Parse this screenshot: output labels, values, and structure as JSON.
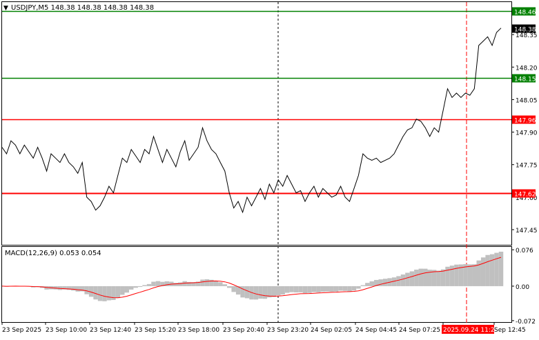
{
  "symbol_header": {
    "arrow": "▼",
    "text": "USDJPY,M5  148.38 148.38 148.38 148.38"
  },
  "macd_header": {
    "text": "MACD(12,26,9) 0.053 0.054"
  },
  "price_axis": {
    "ticks": [
      "148.35",
      "148.20",
      "148.05",
      "147.90",
      "147.75",
      "147.60",
      "147.45"
    ],
    "tick_values": [
      148.35,
      148.2,
      148.05,
      147.9,
      147.75,
      147.6,
      147.45
    ]
  },
  "macd_axis": {
    "ticks": [
      "0.076",
      "0.00",
      "-0.072"
    ],
    "tick_values": [
      0.076,
      0.0,
      -0.072
    ]
  },
  "time_axis": {
    "labels": [
      "23 Sep 2025",
      "23 Sep 10:00",
      "23 Sep 12:40",
      "23 Sep 15:20",
      "23 Sep 18:00",
      "23 Sep 20:40",
      "23 Sep 23:20",
      "24 Sep 02:05",
      "24 Sep 04:45",
      "24 Sep 07:25",
      "2025.09.24 11:25",
      "Sep 12:45"
    ],
    "highlight_label": "2025.09.24 11:25"
  },
  "levels": [
    {
      "name": "resistance-high",
      "label": "148.46",
      "value": 148.46,
      "color": "#008000"
    },
    {
      "name": "current-price",
      "label": "148.38",
      "value": 148.38,
      "color": "#000000"
    },
    {
      "name": "resistance-low",
      "label": "148.15",
      "value": 148.15,
      "color": "#008000"
    },
    {
      "name": "support-high",
      "label": "147.96",
      "value": 147.96,
      "color": "#ff0000"
    },
    {
      "name": "support-low",
      "label": "147.62",
      "value": 147.62,
      "color": "#ff0000"
    }
  ],
  "colors": {
    "price_line": "#000000",
    "macd_histogram": "#c0c0c0",
    "macd_signal": "#ff0000",
    "green_level": "#008000",
    "red_level": "#ff0000",
    "highlight_bg": "#ff0000"
  },
  "chart_data": {
    "type": "line",
    "price_ylim": [
      147.38,
      148.5
    ],
    "macd_ylim": [
      -0.075,
      0.082
    ],
    "price": [
      147.83,
      147.8,
      147.86,
      147.84,
      147.8,
      147.84,
      147.81,
      147.78,
      147.83,
      147.78,
      147.72,
      147.8,
      147.78,
      147.76,
      147.8,
      147.76,
      147.74,
      147.71,
      147.76,
      147.6,
      147.58,
      147.54,
      147.56,
      147.6,
      147.65,
      147.62,
      147.7,
      147.78,
      147.76,
      147.82,
      147.79,
      147.76,
      147.82,
      147.8,
      147.88,
      147.82,
      147.76,
      147.82,
      147.78,
      147.74,
      147.81,
      147.86,
      147.77,
      147.8,
      147.83,
      147.92,
      147.86,
      147.82,
      147.8,
      147.76,
      147.72,
      147.62,
      147.55,
      147.58,
      147.53,
      147.6,
      147.56,
      147.6,
      147.64,
      147.59,
      147.66,
      147.62,
      147.68,
      147.65,
      147.7,
      147.66,
      147.62,
      147.63,
      147.58,
      147.62,
      147.65,
      147.6,
      147.64,
      147.62,
      147.6,
      147.61,
      147.65,
      147.6,
      147.58,
      147.64,
      147.7,
      147.8,
      147.78,
      147.77,
      147.78,
      147.76,
      147.77,
      147.78,
      147.8,
      147.84,
      147.88,
      147.91,
      147.92,
      147.96,
      147.95,
      147.92,
      147.88,
      147.92,
      147.9,
      148.0,
      148.1,
      148.06,
      148.08,
      148.06,
      148.08,
      148.07,
      148.1,
      148.3,
      148.32,
      148.34,
      148.3,
      148.36,
      148.38
    ]
  }
}
